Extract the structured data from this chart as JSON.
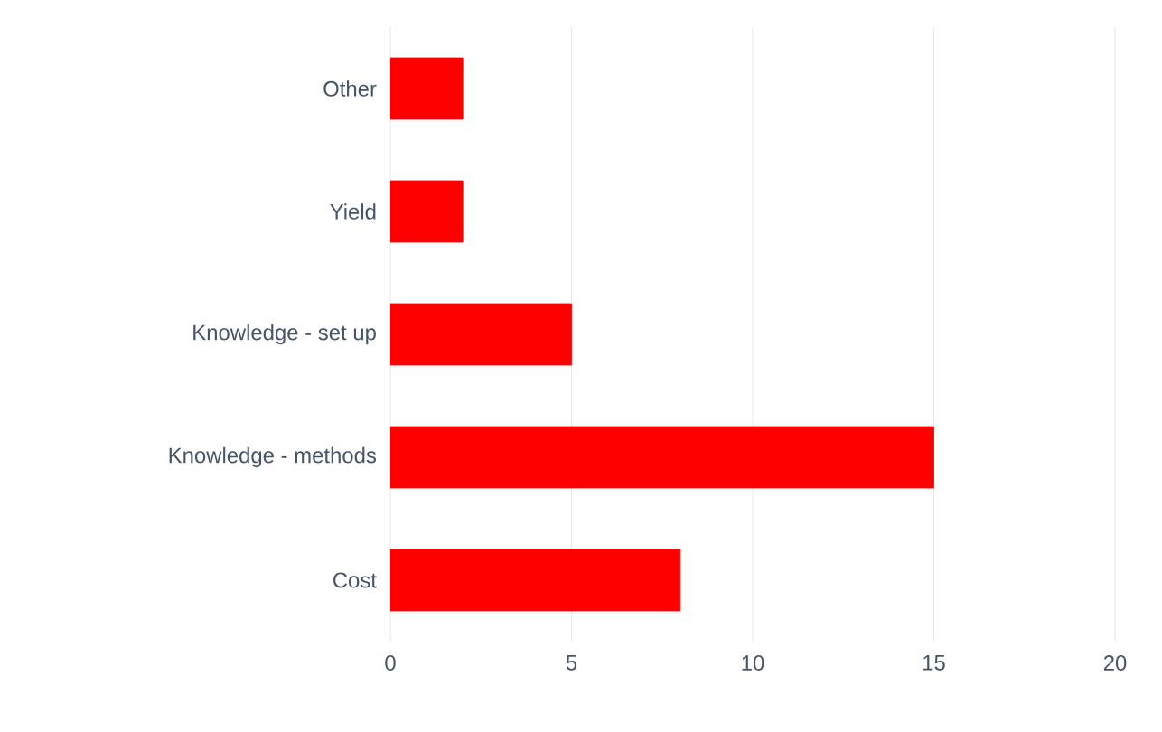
{
  "chart_data": {
    "type": "bar",
    "orientation": "horizontal",
    "categories": [
      "Other",
      "Yield",
      "Knowledge - set up",
      "Knowledge - methods",
      "Cost"
    ],
    "values": [
      2,
      2,
      5,
      15,
      8
    ],
    "color": "#ff0000",
    "xlim": [
      0,
      20
    ],
    "xticks": [
      0,
      5,
      10,
      15,
      20
    ],
    "grid": "x"
  }
}
